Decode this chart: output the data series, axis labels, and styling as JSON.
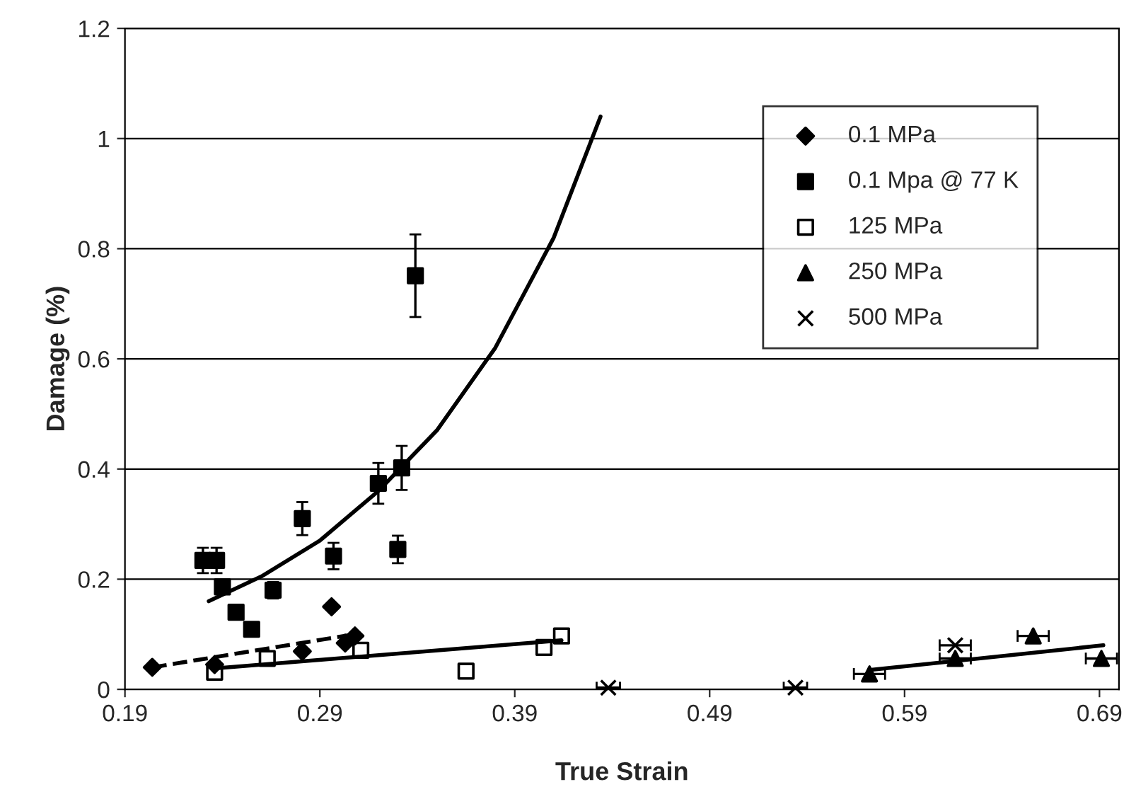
{
  "chart_data": {
    "type": "scatter",
    "xlabel": "True Strain",
    "ylabel": "Damage (%)",
    "xlim": [
      0.19,
      0.7
    ],
    "ylim": [
      0,
      1.2
    ],
    "xticks": [
      0.19,
      0.29,
      0.39,
      0.49,
      0.59,
      0.69
    ],
    "yticks": [
      0,
      0.2,
      0.4,
      0.6,
      0.8,
      {
        "value": 1,
        "label": "1"
      },
      1.2
    ],
    "grid": "y",
    "legend": "top right",
    "series": [
      {
        "name": "0.1 MPa",
        "color": "#000000",
        "marker": "diamond",
        "x": [
          0.204,
          0.236,
          0.281,
          0.296,
          0.303,
          0.308
        ],
        "values": [
          0.04,
          0.045,
          0.069,
          0.15,
          0.084,
          0.097
        ]
      },
      {
        "name": "0.1 Mpa @ 77 K",
        "color": "#000000",
        "marker": "square",
        "x": [
          0.23,
          0.237,
          0.24,
          0.247,
          0.255,
          0.266,
          0.281,
          0.297,
          0.32,
          0.33,
          0.332,
          0.339
        ],
        "values": [
          0.234,
          0.234,
          0.186,
          0.14,
          0.109,
          0.18,
          0.31,
          0.242,
          0.374,
          0.254,
          0.402,
          0.751
        ],
        "errors": [
          0.023,
          0.023,
          null,
          null,
          null,
          0.015,
          0.03,
          0.024,
          0.037,
          0.025,
          0.04,
          0.075
        ]
      },
      {
        "name": "125 MPa",
        "color": "#000000",
        "marker": "square",
        "x": [
          0.236,
          0.263,
          0.311,
          0.365,
          0.405,
          0.414
        ],
        "values": [
          0.031,
          0.056,
          0.071,
          0.033,
          0.076,
          0.097
        ]
      },
      {
        "name": "250 MPa",
        "color": "#000000",
        "marker": "triangle",
        "x": [
          0.572,
          0.616,
          0.656,
          0.691
        ],
        "values": [
          0.028,
          0.056,
          0.097,
          0.056
        ],
        "xerrors": [
          0.008,
          0.008,
          0.008,
          0.008
        ]
      },
      {
        "name": "500 MPa",
        "color": "#000000",
        "marker": "cross",
        "x": [
          0.438,
          0.534,
          0.616
        ],
        "values": [
          0.003,
          0.003,
          0.08
        ],
        "xerrors": [
          0.006,
          0.006,
          0.008
        ]
      },
      {
        "type": "line",
        "color": "#000000",
        "line_style": "dashed",
        "x": [
          0.204,
          0.308
        ],
        "values": [
          0.04,
          0.1
        ]
      },
      {
        "type": "line",
        "color": "#000000",
        "line_style": "solid",
        "x": [
          0.236,
          0.414
        ],
        "values": [
          0.038,
          0.089
        ]
      },
      {
        "type": "line",
        "color": "#000000",
        "line_style": "solid",
        "x": [
          0.572,
          0.692
        ],
        "values": [
          0.035,
          0.08
        ]
      },
      {
        "type": "line",
        "color": "#000000",
        "line_style": "solid",
        "x": [
          0.233,
          0.26,
          0.29,
          0.32,
          0.35,
          0.38,
          0.41,
          0.434
        ],
        "values": [
          0.16,
          0.205,
          0.27,
          0.36,
          0.47,
          0.62,
          0.82,
          1.04
        ]
      }
    ]
  }
}
